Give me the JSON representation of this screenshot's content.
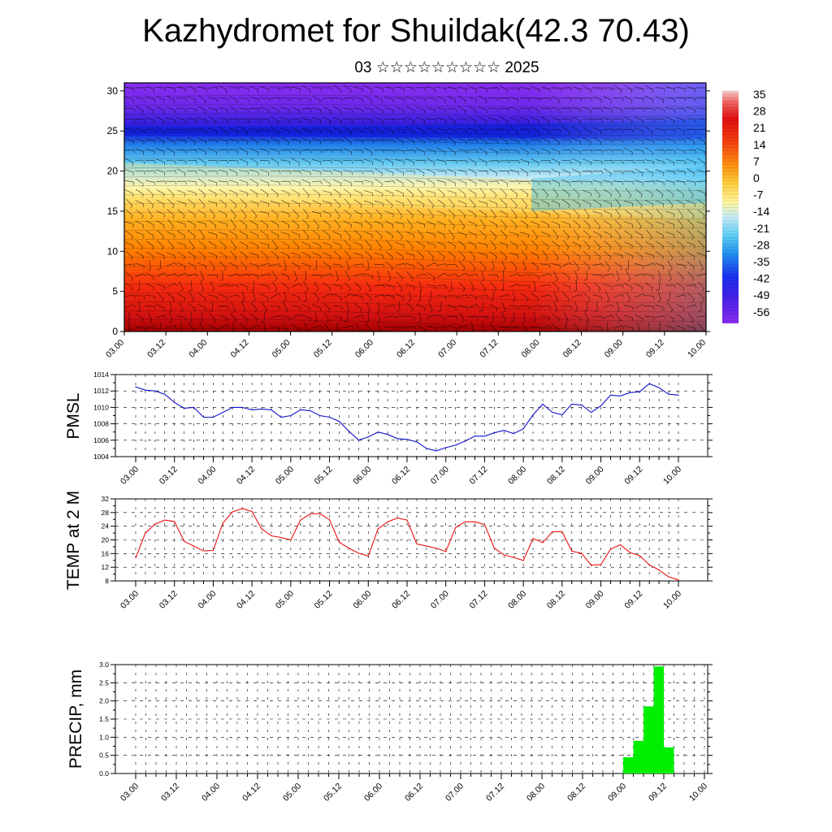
{
  "title": "Kazhydromet for Shuildak(42.3 70.43)",
  "subtitle": "03 ☆☆☆☆☆☆☆☆☆ 2025",
  "colorbar": {
    "labels": [
      "35",
      "28",
      "21",
      "14",
      "7",
      "0",
      "-7",
      "-14",
      "-21",
      "-28",
      "-35",
      "-42",
      "-49",
      "-56"
    ],
    "colors": {
      "violet": "#7b22e8",
      "blue": "#1d2bf0",
      "light_blue": "#bfe9f5",
      "yellow": "#fff07a",
      "orange": "#ff8a00",
      "red": "#ee1111"
    }
  },
  "chart_data": [
    {
      "type": "heatmap",
      "title": "",
      "ylim": [
        0,
        31
      ],
      "y_ticks": [
        "0",
        "5",
        "10",
        "15",
        "20",
        "25",
        "30"
      ],
      "x_ticks": [
        "03.00",
        "03.12",
        "04.00",
        "04.12",
        "05.00",
        "05.12",
        "06.00",
        "06.12",
        "07.00",
        "07.12",
        "08.00",
        "08.12",
        "09.00",
        "09.12",
        "10.00"
      ],
      "cold_core_level": 25,
      "freezing_level_start": 18,
      "freezing_level_end": 15,
      "wind_barbs": true
    },
    {
      "type": "line",
      "ylabel": "PMSL",
      "ylim": [
        1004,
        1014
      ],
      "y_ticks": [
        "1004",
        "1006",
        "1008",
        "1010",
        "1012",
        "1014"
      ],
      "x_ticks": [
        "03.00",
        "03.12",
        "04.00",
        "04.12",
        "05.00",
        "05.12",
        "06.00",
        "06.12",
        "07.00",
        "07.12",
        "08.00",
        "08.12",
        "09.00",
        "09.12",
        "10.00"
      ],
      "color": "#1111cc",
      "values": [
        1012.5,
        1012.1,
        1012.0,
        1011.6,
        1010.6,
        1009.9,
        1010.0,
        1008.8,
        1008.8,
        1009.4,
        1010.0,
        1010.0,
        1009.7,
        1009.8,
        1009.7,
        1008.8,
        1009.0,
        1009.7,
        1009.6,
        1009.0,
        1008.8,
        1008.3,
        1007.1,
        1006.0,
        1006.4,
        1007.0,
        1006.7,
        1006.2,
        1006.1,
        1005.8,
        1005.0,
        1004.7,
        1005.1,
        1005.4,
        1005.9,
        1006.5,
        1006.5,
        1006.9,
        1007.2,
        1006.8,
        1007.4,
        1009.1,
        1010.4,
        1009.4,
        1009.1,
        1010.4,
        1010.3,
        1009.4,
        1010.2,
        1011.5,
        1011.4,
        1011.8,
        1011.9,
        1012.9,
        1012.4,
        1011.6,
        1011.5
      ]
    },
    {
      "type": "line",
      "ylabel": "TEMP at 2 M",
      "ylim": [
        8,
        32
      ],
      "y_ticks": [
        "8",
        "12",
        "16",
        "20",
        "24",
        "28",
        "32"
      ],
      "x_ticks": [
        "03.00",
        "03.12",
        "04.00",
        "04.12",
        "05.00",
        "05.12",
        "06.00",
        "06.12",
        "07.00",
        "07.12",
        "08.00",
        "08.12",
        "09.00",
        "09.12",
        "10.00"
      ],
      "color": "#ee1111",
      "values": [
        14.7,
        22.0,
        24.6,
        25.8,
        25.4,
        19.6,
        18.2,
        16.8,
        16.9,
        25.0,
        28.2,
        29.2,
        28.3,
        23.2,
        21.2,
        20.7,
        20.0,
        25.8,
        27.6,
        27.7,
        25.9,
        19.3,
        17.6,
        16.1,
        15.3,
        23.2,
        25.3,
        26.4,
        25.8,
        18.8,
        18.2,
        17.6,
        16.6,
        23.6,
        25.3,
        25.3,
        24.5,
        17.6,
        15.6,
        14.9,
        14.0,
        20.4,
        19.2,
        22.4,
        22.4,
        16.7,
        16.1,
        12.6,
        12.8,
        17.3,
        18.6,
        16.3,
        15.4,
        12.7,
        11.2,
        9.2,
        8.3
      ]
    },
    {
      "type": "bar",
      "ylabel": "PRECIP, mm",
      "ylim": [
        0,
        3.0
      ],
      "y_ticks": [
        "0.0",
        "0.5",
        "1.0",
        "1.5",
        "2.0",
        "2.5",
        "3.0"
      ],
      "x_ticks": [
        "03.00",
        "03.12",
        "04.00",
        "04.12",
        "05.00",
        "05.12",
        "06.00",
        "06.12",
        "07.00",
        "07.12",
        "08.00",
        "08.12",
        "09.00",
        "09.12",
        "10.00"
      ],
      "color": "#00ee00",
      "x_hours": [
        144,
        147,
        150,
        153,
        156
      ],
      "values": [
        0.45,
        0.9,
        1.85,
        2.95,
        0.72
      ]
    }
  ]
}
